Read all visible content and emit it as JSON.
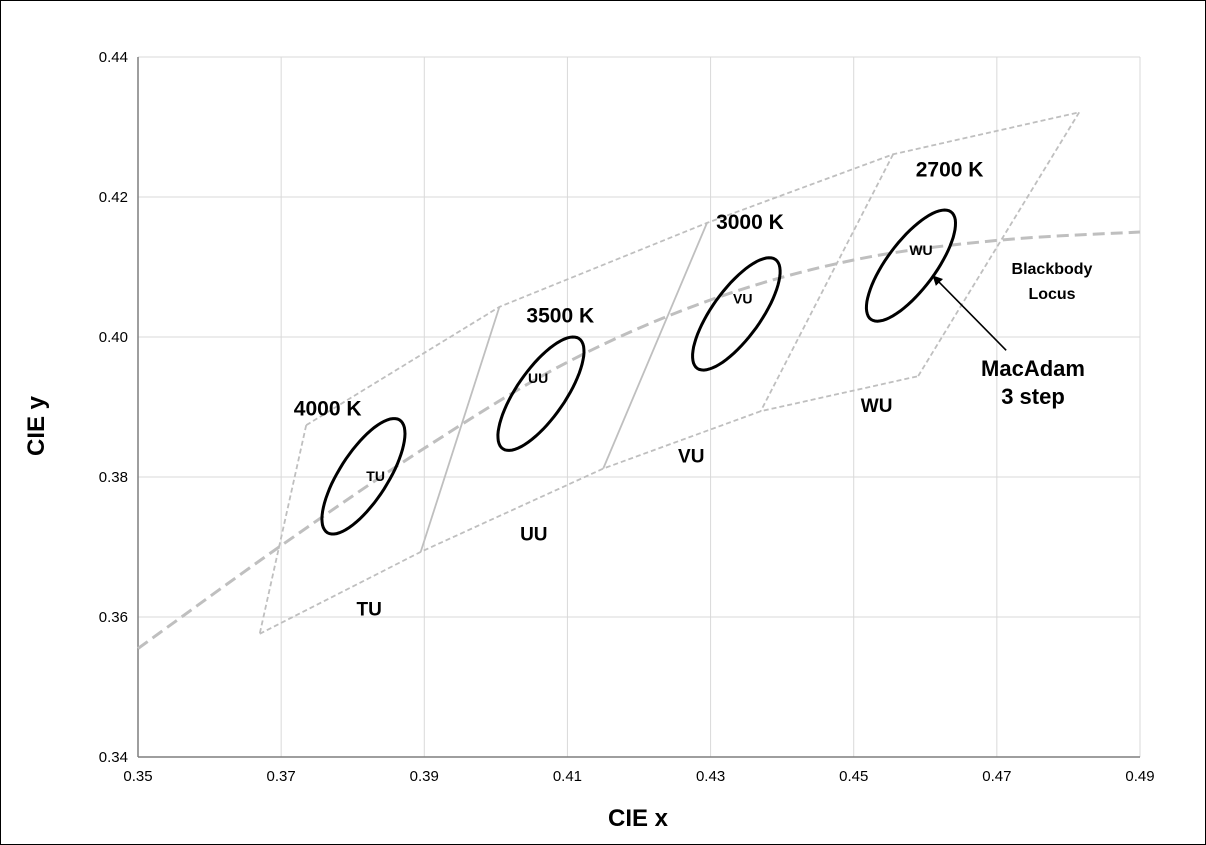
{
  "chart_data": {
    "type": "scatter",
    "xlabel": "CIE x",
    "ylabel": "CIE y",
    "xlim": [
      0.35,
      0.49
    ],
    "ylim": [
      0.34,
      0.44
    ],
    "xticks": [
      "0.35",
      "0.37",
      "0.39",
      "0.41",
      "0.43",
      "0.45",
      "0.47",
      "0.49"
    ],
    "yticks": [
      "0.34",
      "0.36",
      "0.38",
      "0.40",
      "0.42",
      "0.44"
    ],
    "grid": true,
    "blackbody_locus": {
      "label_line1": "Blackbody",
      "label_line2": "Locus",
      "x": [
        0.35,
        0.37,
        0.39,
        0.41,
        0.43,
        0.45,
        0.47,
        0.49
      ],
      "y": [
        0.3555,
        0.3702,
        0.3841,
        0.3964,
        0.4053,
        0.411,
        0.4138,
        0.415
      ]
    },
    "upper_boundary": {
      "x": [
        0.3735,
        0.4005,
        0.4295,
        0.4555,
        0.4815
      ],
      "y": [
        0.3874,
        0.4043,
        0.4163,
        0.4261,
        0.4321
      ]
    },
    "lower_boundary": {
      "x": [
        0.367,
        0.3895,
        0.415,
        0.437,
        0.459
      ],
      "y": [
        0.3576,
        0.3693,
        0.3812,
        0.3894,
        0.3944
      ]
    },
    "divider_lines": [
      {
        "x": [
          0.3735,
          0.367
        ],
        "y": [
          0.3874,
          0.3576
        ]
      },
      {
        "x": [
          0.4005,
          0.3895
        ],
        "y": [
          0.4043,
          0.3693
        ]
      },
      {
        "x": [
          0.4295,
          0.415
        ],
        "y": [
          0.4163,
          0.3812
        ]
      },
      {
        "x": [
          0.4555,
          0.437
        ],
        "y": [
          0.4261,
          0.3894
        ]
      },
      {
        "x": [
          0.4815,
          0.459
        ],
        "y": [
          0.4321,
          0.3944
        ]
      }
    ],
    "ellipses": [
      {
        "name": "TU",
        "cx": 0.3815,
        "cy": 0.3801,
        "a": 0.0095,
        "b": 0.0034,
        "angle_deg": 58
      },
      {
        "name": "UU",
        "cx": 0.4063,
        "cy": 0.3919,
        "a": 0.0095,
        "b": 0.0034,
        "angle_deg": 56
      },
      {
        "name": "VU",
        "cx": 0.4336,
        "cy": 0.4033,
        "a": 0.0095,
        "b": 0.0034,
        "angle_deg": 55
      },
      {
        "name": "WU",
        "cx": 0.458,
        "cy": 0.4102,
        "a": 0.0095,
        "b": 0.0034,
        "angle_deg": 54
      }
    ],
    "cct_labels": [
      {
        "text": "4000 K",
        "x": 0.3765,
        "y": 0.3888
      },
      {
        "text": "3500 K",
        "x": 0.409,
        "y": 0.4021
      },
      {
        "text": "3000 K",
        "x": 0.4355,
        "y": 0.4154
      },
      {
        "text": "2700 K",
        "x": 0.4634,
        "y": 0.4229
      }
    ],
    "bin_labels": [
      {
        "text": "TU",
        "x": 0.3823,
        "y": 0.3602
      },
      {
        "text": "UU",
        "x": 0.4053,
        "y": 0.3709
      },
      {
        "text": "VU",
        "x": 0.4273,
        "y": 0.3821
      },
      {
        "text": "WU",
        "x": 0.4532,
        "y": 0.3893
      }
    ],
    "inner_labels": [
      {
        "text": "TU",
        "x": 0.3832,
        "y": 0.3794
      },
      {
        "text": "UU",
        "x": 0.4059,
        "y": 0.3934
      },
      {
        "text": "VU",
        "x": 0.4345,
        "y": 0.4048
      },
      {
        "text": "WU",
        "x": 0.4594,
        "y": 0.4117
      }
    ],
    "macadam_annotation": {
      "line1": "MacAdam",
      "line2": "3 step",
      "arrow_from": {
        "x": 0.4713,
        "y": 0.3981
      },
      "arrow_to": {
        "x": 0.4612,
        "y": 0.4086
      }
    },
    "colors": {
      "grid": "#d9d9d9",
      "boundary": "#bfbfbf",
      "locus": "#bfbfbf",
      "ellipse": "#000000",
      "axis": "#7f7f7f"
    }
  }
}
